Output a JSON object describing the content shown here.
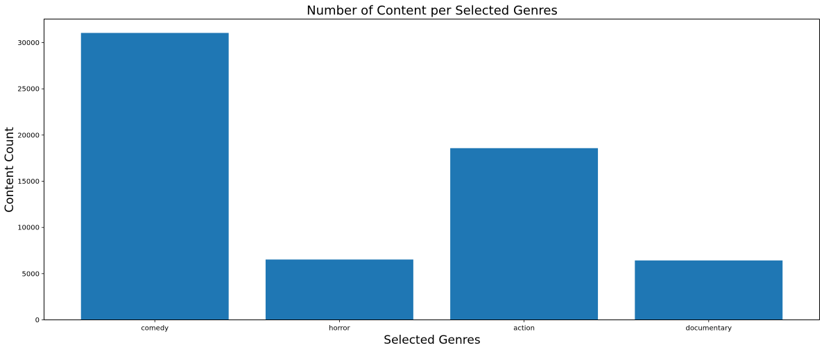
{
  "chart_data": {
    "type": "bar",
    "title": "Number of Content per Selected Genres",
    "xlabel": "Selected Genres",
    "ylabel": "Content Count",
    "categories": [
      "comedy",
      "horror",
      "action",
      "documentary"
    ],
    "values": [
      31050,
      6530,
      18580,
      6430
    ],
    "ylim": [
      0,
      32550
    ],
    "yticks": [
      0,
      5000,
      10000,
      15000,
      20000,
      25000,
      30000
    ],
    "ytick_labels": [
      "0",
      "5000",
      "10000",
      "15000",
      "20000",
      "25000",
      "30000"
    ],
    "bar_color": "#1f77b4",
    "grid": false,
    "legend": "none"
  }
}
